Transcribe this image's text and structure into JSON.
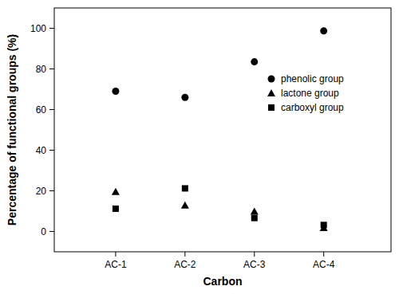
{
  "chart_data": {
    "type": "scatter",
    "x_label": "Carbon",
    "y_label": "Percentage of functional groups (%)",
    "categories": [
      "AC-1",
      "AC-2",
      "AC-3",
      "AC-4"
    ],
    "series": [
      {
        "name": "phenolic group",
        "color": "#000000",
        "marker": "circle",
        "values": [
          69,
          66,
          83.5,
          98.7
        ]
      },
      {
        "name": "lactone group",
        "color": "#000000",
        "marker": "triangle",
        "values": [
          19.5,
          12.8,
          9.8,
          1.8
        ]
      },
      {
        "name": "carboxyl group",
        "color": "#000000",
        "marker": "square",
        "values": [
          11.2,
          21.2,
          6.6,
          3.2
        ]
      }
    ],
    "ylim": [
      -10,
      110
    ],
    "yticks": [
      0,
      20,
      40,
      60,
      80,
      100
    ],
    "grid": false,
    "legend": "right"
  }
}
